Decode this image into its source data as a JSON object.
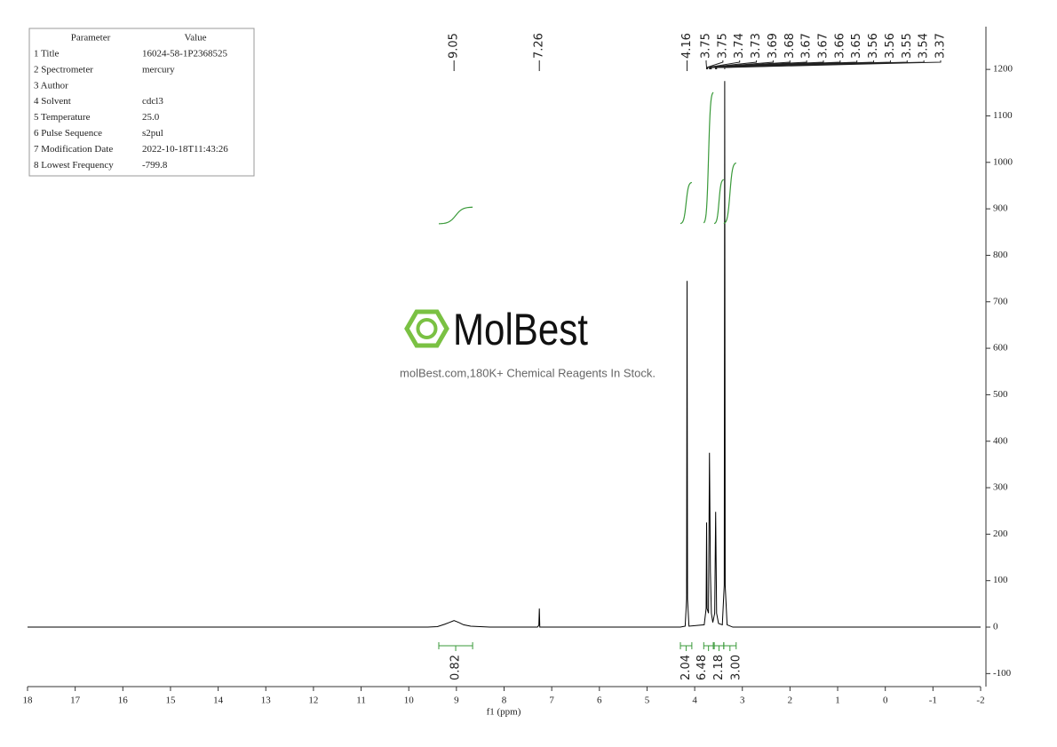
{
  "chart_data": {
    "type": "line",
    "x_label": "f1 (ppm)",
    "xlim": [
      18,
      -2
    ],
    "xticks": [
      18,
      17,
      16,
      15,
      14,
      13,
      12,
      11,
      10,
      9,
      8,
      7,
      6,
      5,
      4,
      3,
      2,
      1,
      0,
      -1,
      -2
    ],
    "ylim": [
      -128,
      1292
    ],
    "yticks": [
      -100,
      0,
      100,
      200,
      300,
      400,
      500,
      600,
      700,
      800,
      900,
      1000,
      1100,
      1200
    ],
    "x": [
      18,
      9.6,
      9.4,
      9.25,
      9.15,
      9.05,
      8.95,
      8.85,
      8.7,
      8.3,
      7.3,
      7.27,
      7.26,
      7.25,
      4.3,
      4.2,
      4.17,
      4.16,
      4.15,
      4.12,
      3.8,
      3.76,
      3.75,
      3.74,
      3.71,
      3.69,
      3.68,
      3.67,
      3.65,
      3.62,
      3.58,
      3.56,
      3.54,
      3.5,
      3.42,
      3.38,
      3.37,
      3.36,
      3.32,
      3.2,
      -2
    ],
    "series": [
      {
        "color": "#000000",
        "values": [
          0,
          0,
          1,
          6,
          10,
          14,
          10,
          5,
          2,
          0,
          0,
          4,
          40,
          0,
          0,
          2,
          60,
          745,
          60,
          2,
          5,
          40,
          225,
          40,
          30,
          375,
          250,
          120,
          30,
          10,
          30,
          248,
          30,
          8,
          5,
          90,
          1175,
          90,
          5,
          0,
          0
        ]
      }
    ],
    "peak_labels": [
      9.05,
      7.26,
      4.16,
      3.75,
      3.75,
      3.74,
      3.73,
      3.69,
      3.68,
      3.67,
      3.67,
      3.66,
      3.65,
      3.56,
      3.56,
      3.55,
      3.54,
      3.37
    ],
    "integrals": {
      "color": "#3a9a3a",
      "ranges": [
        [
          9.37,
          8.66
        ],
        [
          4.3,
          4.06
        ],
        [
          3.81,
          3.61
        ],
        [
          3.59,
          3.39
        ],
        [
          3.39,
          3.13
        ]
      ],
      "values": [
        0.82,
        2.04,
        6.48,
        2.18,
        3
      ],
      "value_labels": [
        "0.82",
        "2.04",
        "6.48",
        "2.18",
        "3.00"
      ]
    },
    "parameters": {
      "header": [
        "Parameter",
        "Value"
      ],
      "rows": [
        [
          "1 Title",
          "16024-58-1P2368525"
        ],
        [
          "2 Spectrometer",
          "mercury"
        ],
        [
          "3 Author"
        ],
        [
          "4 Solvent",
          "cdcl3"
        ],
        [
          "5 Temperature",
          "25.0"
        ],
        [
          "6 Pulse Sequence",
          "s2pul"
        ],
        [
          "7 Modification Date",
          "2022-10-18T11:43:26"
        ],
        [
          "8 Lowest Frequency",
          "-799.8"
        ]
      ]
    },
    "watermark": {
      "brand": "MolBest",
      "tagline": "molBest.com,180K+ Chemical Reagents In Stock."
    }
  }
}
